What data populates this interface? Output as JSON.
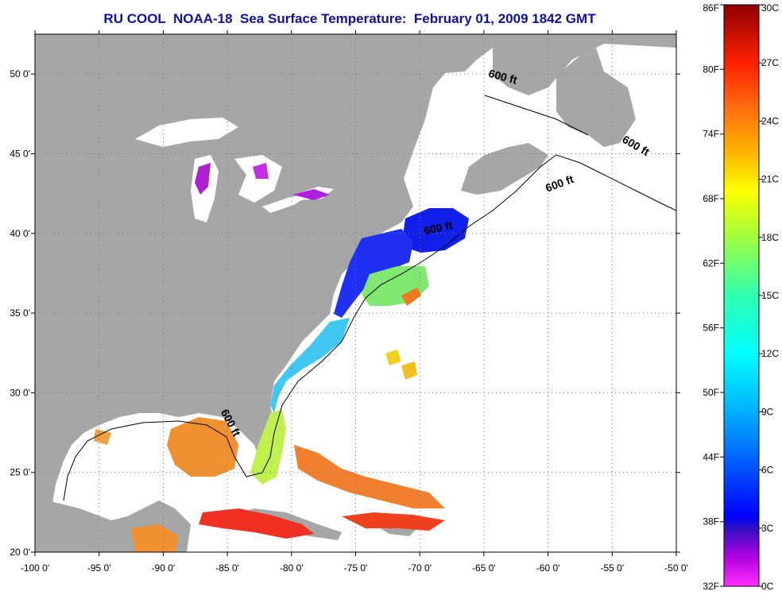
{
  "title": "RU COOL  NOAA-18  Sea Surface Temperature:  February 01, 2009 1842 GMT",
  "map": {
    "lon_range": [
      -100,
      -50
    ],
    "lat_range": [
      20,
      52.5
    ],
    "lon_ticks": [
      {
        "value": -100,
        "label": "-100 0'"
      },
      {
        "value": -95,
        "label": "-95 0'"
      },
      {
        "value": -90,
        "label": "-90 0'"
      },
      {
        "value": -85,
        "label": "-85 0'"
      },
      {
        "value": -80,
        "label": "-80 0'"
      },
      {
        "value": -75,
        "label": "-75 0'"
      },
      {
        "value": -70,
        "label": "-70 0'"
      },
      {
        "value": -65,
        "label": "-65 0'"
      },
      {
        "value": -60,
        "label": "-60 0'"
      },
      {
        "value": -55,
        "label": "-55 0'"
      },
      {
        "value": -50,
        "label": "-50 0'"
      }
    ],
    "lat_ticks": [
      {
        "value": 50,
        "label": "50 0'"
      },
      {
        "value": 45,
        "label": "45 0'"
      },
      {
        "value": 40,
        "label": "40 0'"
      },
      {
        "value": 35,
        "label": "35 0'"
      },
      {
        "value": 30,
        "label": "30 0'"
      },
      {
        "value": 25,
        "label": "25 0'"
      },
      {
        "value": 20,
        "label": "20 0'"
      }
    ],
    "isobath_labels": [
      {
        "text": "600 ft",
        "lon": -63.6,
        "lat": 49.6,
        "angle": 15
      },
      {
        "text": "600 ft",
        "lon": -53.3,
        "lat": 45.3,
        "angle": 30
      },
      {
        "text": "600 ft",
        "lon": -59.0,
        "lat": 42.9,
        "angle": -20
      },
      {
        "text": "600 ft",
        "lon": -68.5,
        "lat": 40.1,
        "angle": -12
      },
      {
        "text": "600 ft",
        "lon": -85.0,
        "lat": 28.0,
        "angle": 62
      }
    ],
    "colors": {
      "land": "#a6a6a6",
      "ocean": "#ffffff",
      "title": "#1010a0"
    }
  },
  "colorbar": {
    "min_c": 0,
    "max_c": 30,
    "fahrenheit_ticks": [
      {
        "value_c": 30,
        "label": "86F"
      },
      {
        "value_c": 26.67,
        "label": "80F"
      },
      {
        "value_c": 23.33,
        "label": "74F"
      },
      {
        "value_c": 20,
        "label": "68F"
      },
      {
        "value_c": 16.67,
        "label": "62F"
      },
      {
        "value_c": 13.33,
        "label": "56F"
      },
      {
        "value_c": 10,
        "label": "50F"
      },
      {
        "value_c": 6.67,
        "label": "44F"
      },
      {
        "value_c": 3.33,
        "label": "38F"
      },
      {
        "value_c": 0,
        "label": "32F"
      }
    ],
    "celsius_ticks": [
      {
        "value_c": 30,
        "label": "30C"
      },
      {
        "value_c": 27,
        "label": "27C"
      },
      {
        "value_c": 24,
        "label": "24C"
      },
      {
        "value_c": 21,
        "label": "21C"
      },
      {
        "value_c": 18,
        "label": "18C"
      },
      {
        "value_c": 15,
        "label": "15C"
      },
      {
        "value_c": 12,
        "label": "12C"
      },
      {
        "value_c": 9,
        "label": "9C"
      },
      {
        "value_c": 6,
        "label": "6C"
      },
      {
        "value_c": 3,
        "label": "3C"
      },
      {
        "value_c": 0,
        "label": "0C"
      }
    ]
  }
}
